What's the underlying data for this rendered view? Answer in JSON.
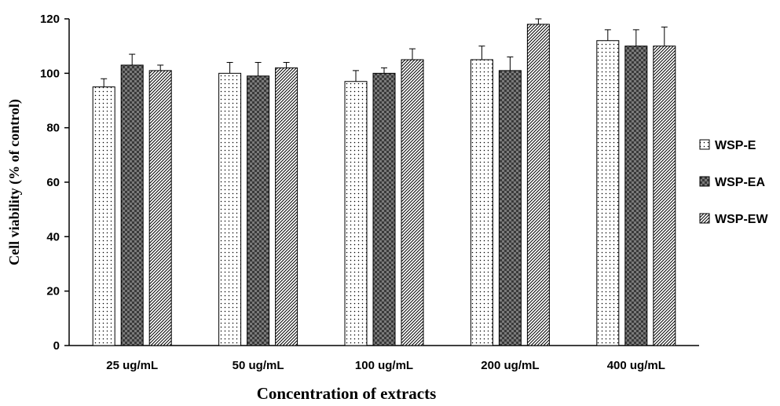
{
  "chart_data": {
    "type": "bar",
    "categories": [
      "25 ug/mL",
      "50 ug/mL",
      "100 ug/mL",
      "200 ug/mL",
      "400 ug/mL"
    ],
    "series": [
      {
        "name": "WSP-E",
        "values": [
          95,
          100,
          97,
          105,
          112
        ],
        "errors": [
          3,
          4,
          4,
          5,
          4
        ]
      },
      {
        "name": "WSP-EA",
        "values": [
          103,
          99,
          100,
          101,
          110
        ],
        "errors": [
          4,
          5,
          2,
          5,
          6
        ]
      },
      {
        "name": "WSP-EW",
        "values": [
          101,
          102,
          105,
          118,
          110
        ],
        "errors": [
          2,
          2,
          4,
          2,
          7
        ]
      }
    ],
    "title": "",
    "xlabel": "Concentration of extracts",
    "ylabel": "Cell viability (% of control)",
    "ylim": [
      0,
      120
    ],
    "yticks": [
      0,
      20,
      40,
      60,
      80,
      100,
      120
    ],
    "grid": false,
    "legend": "right",
    "colors": {
      "axis": "#000000",
      "bar_stroke": "#000000",
      "fill": "#ffffff"
    }
  }
}
